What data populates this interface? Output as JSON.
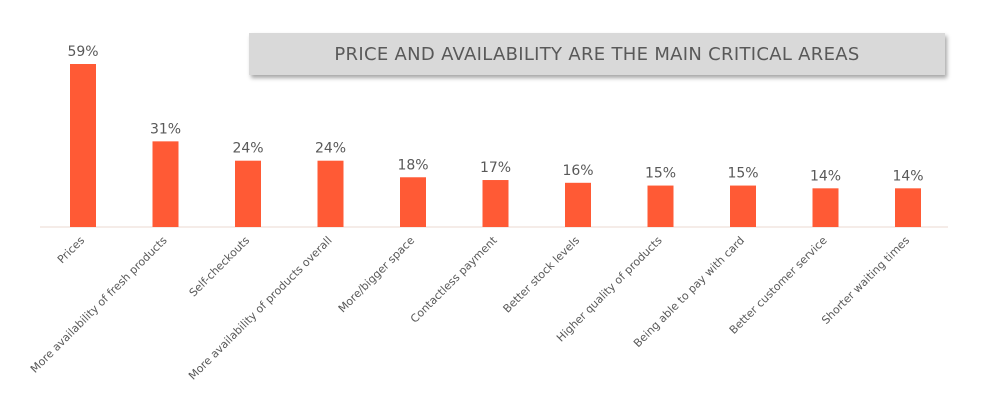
{
  "chart_data": {
    "type": "bar",
    "title": "PRICE AND AVAILABILITY ARE THE MAIN CRITICAL AREAS",
    "categories": [
      "Prices",
      "More availability of fresh products",
      "Self-checkouts",
      "More availability of products overall",
      "More/bigger space",
      "Contactless payment",
      "Better stock levels",
      "Higher quality of products",
      "Being able to pay with card",
      "Better customer service",
      "Shorter waiting times"
    ],
    "values": [
      59,
      31,
      24,
      24,
      18,
      17,
      16,
      15,
      15,
      14,
      14
    ],
    "value_labels": [
      "59%",
      "31%",
      "24%",
      "24%",
      "18%",
      "17%",
      "16%",
      "15%",
      "15%",
      "14%",
      "14%"
    ],
    "ylim": [
      0,
      59
    ],
    "xlabel": "",
    "ylabel": "",
    "grid": false,
    "bar_color": "#ff5a35",
    "axis_color": "#f2e6e0"
  }
}
